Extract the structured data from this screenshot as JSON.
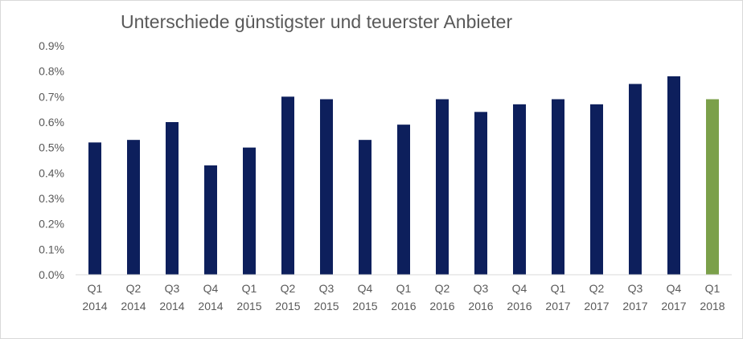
{
  "chart_data": {
    "type": "bar",
    "title": "Unterschiede günstigster und teuerster Anbieter",
    "xlabel": "",
    "ylabel": "",
    "ylim": [
      0,
      0.9
    ],
    "y_tick_labels": [
      "0.0%",
      "0.1%",
      "0.2%",
      "0.3%",
      "0.4%",
      "0.5%",
      "0.6%",
      "0.7%",
      "0.8%",
      "0.9%"
    ],
    "grid": false,
    "legend": "none",
    "categories": [
      [
        "Q1",
        "2014"
      ],
      [
        "Q2",
        "2014"
      ],
      [
        "Q3",
        "2014"
      ],
      [
        "Q4",
        "2014"
      ],
      [
        "Q1",
        "2015"
      ],
      [
        "Q2",
        "2015"
      ],
      [
        "Q3",
        "2015"
      ],
      [
        "Q4",
        "2015"
      ],
      [
        "Q1",
        "2016"
      ],
      [
        "Q2",
        "2016"
      ],
      [
        "Q3",
        "2016"
      ],
      [
        "Q4",
        "2016"
      ],
      [
        "Q1",
        "2017"
      ],
      [
        "Q2",
        "2017"
      ],
      [
        "Q3",
        "2017"
      ],
      [
        "Q4",
        "2017"
      ],
      [
        "Q1",
        "2018"
      ]
    ],
    "values": [
      0.52,
      0.53,
      0.6,
      0.43,
      0.5,
      0.7,
      0.69,
      0.53,
      0.59,
      0.69,
      0.64,
      0.67,
      0.69,
      0.67,
      0.75,
      0.78,
      0.69
    ],
    "colors": {
      "bar": "#0d1f5c",
      "highlight": "#7ba04a",
      "axis": "#d9d9d9",
      "text": "#595959"
    },
    "highlight_index": 16
  }
}
